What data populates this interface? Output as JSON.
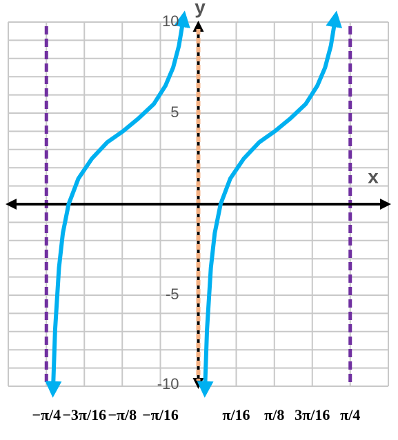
{
  "chart_data": {
    "type": "line",
    "x_label": "x",
    "y_label": "y",
    "xlim": [
      -0.982,
      0.982
    ],
    "ylim": [
      -10,
      10
    ],
    "xticks": [
      {
        "value": -0.785,
        "label": "−π/4"
      },
      {
        "value": -0.589,
        "label": "−3π/16"
      },
      {
        "value": -0.393,
        "label": "−π/8"
      },
      {
        "value": -0.196,
        "label": "−π/16"
      },
      {
        "value": 0.196,
        "label": "π/16"
      },
      {
        "value": 0.393,
        "label": "π/8"
      },
      {
        "value": 0.589,
        "label": "3π/16"
      },
      {
        "value": 0.785,
        "label": "π/4"
      }
    ],
    "yticks": [
      -10,
      -5,
      5,
      10
    ],
    "xgrid": [
      -0.982,
      -0.785,
      -0.589,
      -0.393,
      -0.196,
      0,
      0.196,
      0.393,
      0.589,
      0.785,
      0.982
    ],
    "ygrid": [
      -10,
      -9,
      -8,
      -7,
      -6,
      -5,
      -4,
      -3,
      -2,
      -1,
      0,
      1,
      2,
      3,
      4,
      5,
      6,
      7,
      8,
      9,
      10
    ],
    "grid": true,
    "asymptotes": [
      {
        "x": -0.785,
        "color": "#7030a0"
      },
      {
        "x": 0,
        "color": "#f4b183"
      },
      {
        "x": 0.785,
        "color": "#7030a0"
      }
    ],
    "series": [
      {
        "color": "#00b0f0",
        "x": [
          -0.75,
          -0.74,
          -0.72,
          -0.7,
          -0.67,
          -0.62,
          -0.55,
          -0.47,
          -0.39,
          -0.31,
          -0.23,
          -0.17,
          -0.13,
          -0.1,
          -0.08,
          null,
          0.035,
          0.045,
          0.065,
          0.085,
          0.115,
          0.165,
          0.235,
          0.315,
          0.395,
          0.475,
          0.555,
          0.615,
          0.655,
          0.685,
          0.705
        ],
        "values": [
          -10.0,
          -6.9,
          -3.5,
          -1.6,
          0.0,
          1.4,
          2.5,
          3.4,
          4.0,
          4.7,
          5.5,
          6.5,
          7.5,
          8.7,
          10.0,
          null,
          -10.0,
          -6.9,
          -3.5,
          -1.6,
          0.0,
          1.4,
          2.5,
          3.4,
          4.0,
          4.7,
          5.5,
          6.5,
          7.5,
          8.7,
          10.0
        ]
      }
    ]
  }
}
